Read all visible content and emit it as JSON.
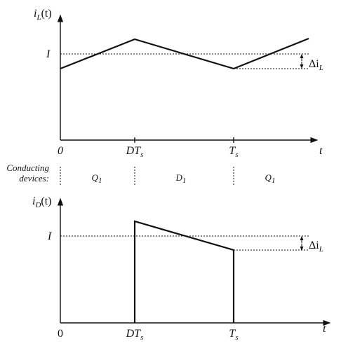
{
  "top_plot": {
    "y_label": {
      "base": "i",
      "sub": "L",
      "tail": "(t)"
    },
    "level_label": "I",
    "ripple_label": {
      "base": "Δi",
      "sub": "L"
    },
    "x_labels": [
      {
        "base": "0"
      },
      {
        "base": "DT",
        "sub": "s"
      },
      {
        "base": "T",
        "sub": "s"
      }
    ],
    "x_axis_label": "t"
  },
  "conducting": {
    "label": [
      "Conducting",
      "devices:"
    ],
    "devices": [
      {
        "base": "Q",
        "sub": "1"
      },
      {
        "base": "D",
        "sub": "1"
      },
      {
        "base": "Q",
        "sub": "1"
      }
    ]
  },
  "bottom_plot": {
    "y_label": {
      "base": "i",
      "sub": "D",
      "tail": "(t)"
    },
    "level_label": "I",
    "ripple_label": {
      "base": "Δi",
      "sub": "L"
    },
    "x_labels": [
      {
        "base": "0"
      },
      {
        "base": "DT",
        "sub": "s"
      },
      {
        "base": "T",
        "sub": "s"
      }
    ],
    "x_axis_label": "t"
  }
}
